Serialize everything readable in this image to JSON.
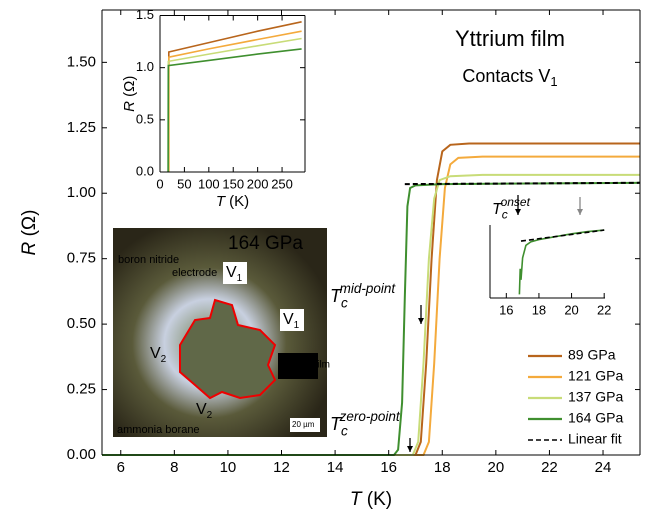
{
  "chart_data": [
    {
      "type": "line",
      "title": "Yttrium film",
      "subtitle": {
        "text": "Contacts V",
        "sub": "1"
      },
      "x_label": {
        "text": "T",
        "unit": " (K)"
      },
      "y_label": {
        "text": "R",
        "unit": " (Ω)"
      },
      "xlim": [
        5.3,
        25.38
      ],
      "ylim": [
        0,
        1.7
      ],
      "xticks": [
        6,
        8,
        10,
        12,
        14,
        16,
        18,
        20,
        22,
        24
      ],
      "yticks": [
        {
          "value": 0,
          "label": "0.00"
        },
        {
          "value": 0.25,
          "label": "0.25"
        },
        {
          "value": 0.5,
          "label": "0.50"
        },
        {
          "value": 0.75,
          "label": "0.75"
        },
        {
          "value": 1,
          "label": "1.00"
        },
        {
          "value": 1.25,
          "label": "1.25"
        },
        {
          "value": 1.5,
          "label": "1.50"
        }
      ],
      "legend": "lower right",
      "series": [
        {
          "name": "89 GPa",
          "color": "#b8651c",
          "x": [
            5.3,
            17.0,
            17.2,
            17.4,
            17.6,
            17.8,
            18.0,
            18.3,
            19.0,
            25.38
          ],
          "values": [
            0,
            0,
            0.05,
            0.35,
            0.75,
            1.05,
            1.16,
            1.185,
            1.19,
            1.19
          ]
        },
        {
          "name": "121 GPa",
          "color": "#f4aa3c",
          "x": [
            5.3,
            17.3,
            17.5,
            17.7,
            17.9,
            18.1,
            18.3,
            18.6,
            19.5,
            25.38
          ],
          "values": [
            0,
            0,
            0.05,
            0.35,
            0.75,
            1.02,
            1.11,
            1.135,
            1.14,
            1.14
          ]
        },
        {
          "name": "137 GPa",
          "color": "#c8dc78",
          "x": [
            5.3,
            16.9,
            17.1,
            17.3,
            17.5,
            17.7,
            17.9,
            18.3,
            19.5,
            25.38
          ],
          "values": [
            0,
            0,
            0.05,
            0.35,
            0.75,
            0.98,
            1.05,
            1.065,
            1.07,
            1.07
          ]
        },
        {
          "name": "164 GPa",
          "color": "#3f8f2f",
          "x": [
            5.3,
            16.2,
            16.35,
            16.5,
            16.6,
            16.7,
            16.8,
            17.0,
            18.0,
            25.38
          ],
          "values": [
            0,
            0,
            0.02,
            0.2,
            0.6,
            0.95,
            1.02,
            1.03,
            1.035,
            1.04
          ]
        },
        {
          "name": "Linear fit",
          "color": "#000000",
          "dash": true,
          "x": [
            16.6,
            25.38
          ],
          "values": [
            1.035,
            1.04
          ]
        }
      ],
      "annotations": [
        {
          "text": "T",
          "sub": "c",
          "sup": "mid-point"
        },
        {
          "text": "T",
          "sub": "c",
          "sup": "zero-point"
        }
      ]
    },
    {
      "type": "line",
      "x_label": {
        "text": "T",
        "unit": " (K)"
      },
      "y_label": {
        "text": "R",
        "unit": " (Ω)"
      },
      "xlim": [
        0,
        297
      ],
      "ylim": [
        0,
        1.5
      ],
      "xticks": [
        0,
        50,
        100,
        150,
        200,
        250
      ],
      "yticks": [
        {
          "value": 0,
          "label": "0.0"
        },
        {
          "value": 0.5,
          "label": "0.5"
        },
        {
          "value": 1,
          "label": "1.0"
        },
        {
          "value": 1.5,
          "label": "1.5"
        }
      ],
      "series": [
        {
          "color": "#b8651c",
          "x": [
            18,
            18,
            100,
            200,
            290
          ],
          "values": [
            0,
            1.15,
            1.24,
            1.35,
            1.44
          ]
        },
        {
          "color": "#f4aa3c",
          "x": [
            18,
            18,
            100,
            200,
            290
          ],
          "values": [
            0,
            1.1,
            1.18,
            1.27,
            1.35
          ]
        },
        {
          "color": "#c8dc78",
          "x": [
            17,
            17,
            100,
            200,
            290
          ],
          "values": [
            0,
            1.06,
            1.13,
            1.21,
            1.28
          ]
        },
        {
          "color": "#3f8f2f",
          "x": [
            16.5,
            17,
            100,
            200,
            290
          ],
          "values": [
            0,
            1.02,
            1.07,
            1.13,
            1.18
          ]
        }
      ]
    },
    {
      "type": "line",
      "xlim": [
        15.0,
        22.05
      ],
      "ylim": [
        0,
        1
      ],
      "xticks": [
        16,
        18,
        20,
        22
      ],
      "annotations": [
        {
          "text": "T",
          "sub": "c",
          "sup": "onset"
        }
      ],
      "series": [
        {
          "color": "#3f8f2f",
          "x": [
            16.8,
            16.85,
            16.9,
            17.0,
            17.2,
            17.5,
            18.0,
            19.0,
            20.0,
            21.0,
            22.0
          ],
          "values": [
            0.05,
            0.4,
            0.25,
            0.55,
            0.72,
            0.77,
            0.8,
            0.84,
            0.88,
            0.91,
            0.93
          ]
        },
        {
          "color": "#000000",
          "dash": true,
          "x": [
            16.9,
            22.0
          ],
          "values": [
            0.78,
            0.93
          ]
        }
      ]
    }
  ],
  "image_inset": {
    "pressure": "164 GPa",
    "labels": [
      "boron nitride",
      "electrode",
      "V",
      "V",
      "V",
      "V",
      "Yttrium film",
      "ammonia borane",
      "20 µm"
    ],
    "subs": [
      "1",
      "1",
      "2",
      "2"
    ]
  }
}
